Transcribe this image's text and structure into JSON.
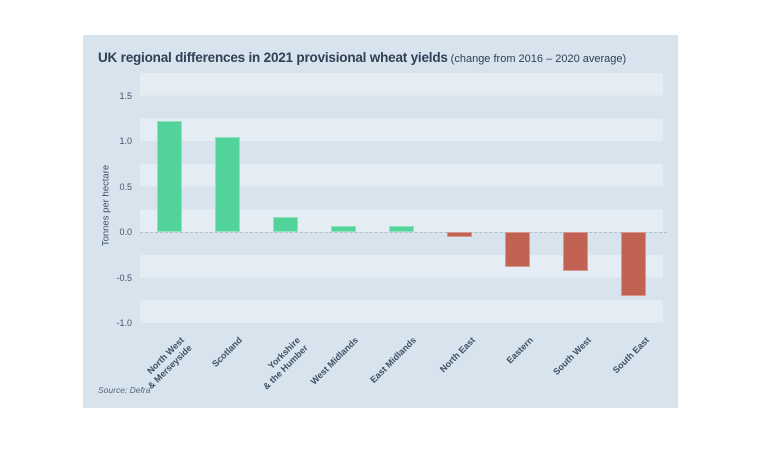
{
  "card": {
    "title": "UK regional differences in 2021 provisional wheat yields",
    "title_suffix": "(change from 2016 – 2020 average)",
    "source": "Source: Defra",
    "background": "#d7e3ed"
  },
  "chart_data": {
    "type": "bar",
    "title": "UK regional differences in 2021 provisional wheat yields",
    "subtitle": "change from 2016 – 2020 average",
    "ylabel": "Tonnes per hectare",
    "xlabel": "",
    "categories": [
      "North West\n& Merseyside",
      "Scotland",
      "Yorkshire\n& the Humber",
      "West Midlands",
      "East Midlands",
      "North East",
      "Eastern",
      "South West",
      "South East"
    ],
    "values": [
      1.22,
      1.04,
      0.17,
      0.07,
      0.07,
      -0.06,
      -0.39,
      -0.43,
      -0.7
    ],
    "yticks": [
      1.5,
      1.0,
      0.5,
      0.0,
      -0.5,
      -1.0
    ],
    "ylim": [
      -1.0,
      1.75
    ],
    "grid": "horizontal-stripes-every-0.25",
    "legend": "none",
    "positive_color": "#52d39a",
    "negative_color": "#c26253",
    "stripe_color": "#e4edf4",
    "source": "Source: Defra"
  }
}
